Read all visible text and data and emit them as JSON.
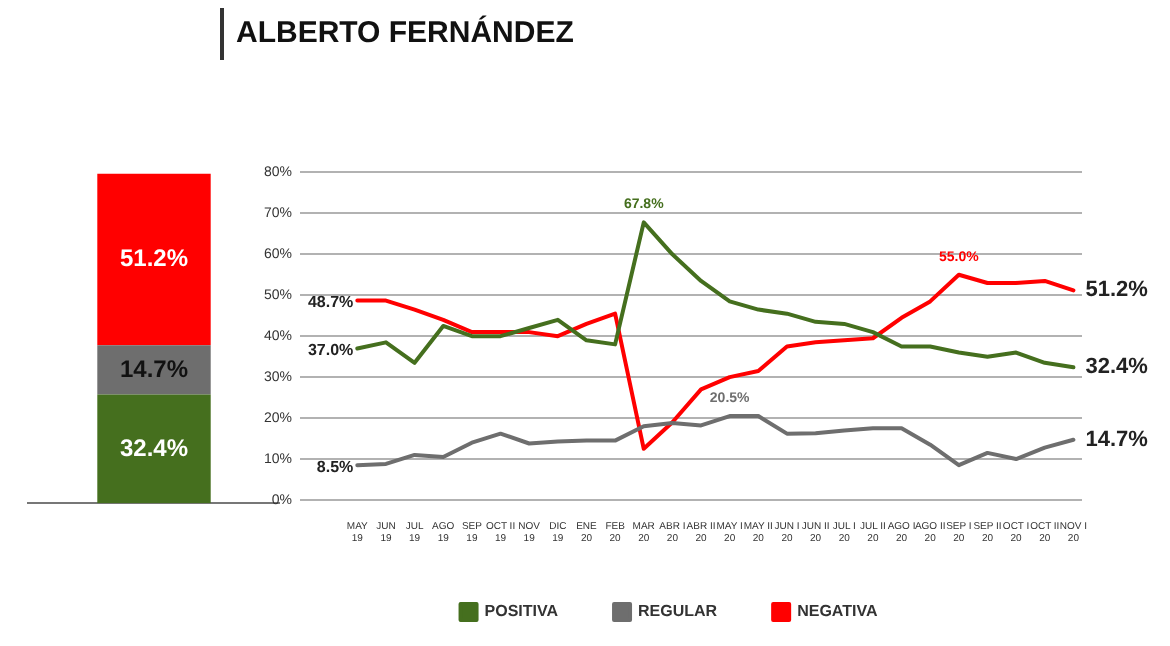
{
  "chart_data": [
    {
      "type": "bar",
      "categories": [
        null
      ],
      "stacked": true,
      "legend": false,
      "series": [
        {
          "color": "#456f1e",
          "values": [
            32.4
          ],
          "value_labels": [
            "32.4%"
          ]
        },
        {
          "color": "#6e6e6e",
          "values": [
            14.7
          ],
          "value_labels": [
            "14.7%"
          ]
        },
        {
          "color": "#ff0000",
          "values": [
            51.2
          ],
          "value_labels": [
            "51.2%"
          ]
        }
      ]
    },
    {
      "type": "line",
      "title": "ALBERTO FERNÁNDEZ",
      "categories": [
        "MAY 19",
        "JUN 19",
        "JUL 19",
        "AGO 19",
        "SEP 19",
        "OCT II 19",
        "NOV 19",
        "DIC 19",
        "ENE 20",
        "FEB 20",
        "MAR 20",
        "ABR I 20",
        "ABR II 20",
        "MAY I 20",
        "MAY II 20",
        "JUN I 20",
        "JUN II 20",
        "JUL I 20",
        "JUL II 20",
        "AGO I 20",
        "AGO II 20",
        "SEP I 20",
        "SEP II 20",
        "OCT I 20",
        "OCT II 20",
        "NOV I 20"
      ],
      "ylim": [
        0,
        80
      ],
      "yticks": [
        {
          "value": 0,
          "label": "0%"
        },
        {
          "value": 10,
          "label": "10%"
        },
        {
          "value": 20,
          "label": "20%"
        },
        {
          "value": 30,
          "label": "30%"
        },
        {
          "value": 40,
          "label": "40%"
        },
        {
          "value": 50,
          "label": "50%"
        },
        {
          "value": 60,
          "label": "60%"
        },
        {
          "value": 70,
          "label": "70%"
        },
        {
          "value": 80,
          "label": "80%"
        }
      ],
      "grid": "y",
      "legend": "bottom",
      "marker": "none",
      "line_style": "solid",
      "series": [
        {
          "name": "POSITIVA",
          "color": "#456f1e",
          "values": [
            37.0,
            38.5,
            33.5,
            42.5,
            40,
            40,
            42,
            44,
            39,
            38,
            67.8,
            60,
            53.5,
            48.5,
            46.5,
            45.5,
            43.5,
            43,
            41,
            37.5,
            37.5,
            36,
            35,
            36,
            33.5,
            32.4
          ],
          "value_labels": [
            "37.0%",
            null,
            null,
            null,
            null,
            null,
            null,
            null,
            null,
            null,
            "67.8%",
            null,
            null,
            null,
            null,
            null,
            null,
            null,
            null,
            null,
            null,
            null,
            null,
            null,
            null,
            "32.4%"
          ]
        },
        {
          "name": "REGULAR",
          "color": "#6e6e6e",
          "values": [
            8.5,
            8.8,
            11,
            10.5,
            14,
            16.2,
            13.8,
            14.3,
            14.5,
            14.5,
            18,
            18.8,
            18.2,
            20.5,
            20.5,
            16.2,
            16.3,
            17,
            17.5,
            17.5,
            13.5,
            8.5,
            11.5,
            10,
            12.8,
            14.7
          ],
          "value_labels": [
            "8.5%",
            null,
            null,
            null,
            null,
            null,
            null,
            null,
            null,
            null,
            null,
            null,
            null,
            "20.5%",
            null,
            null,
            null,
            null,
            null,
            null,
            null,
            null,
            null,
            null,
            null,
            "14.7%"
          ]
        },
        {
          "name": "NEGATIVA",
          "color": "#ff0000",
          "values": [
            48.7,
            48.7,
            46.5,
            44,
            41,
            41,
            41,
            40,
            43,
            45.5,
            12.5,
            19,
            27,
            30,
            31.5,
            37.5,
            38.5,
            39,
            39.5,
            44.5,
            48.5,
            55.0,
            53,
            53,
            53.5,
            51.2
          ],
          "value_labels": [
            "48.7%",
            null,
            null,
            null,
            null,
            null,
            null,
            null,
            null,
            null,
            null,
            null,
            null,
            null,
            null,
            null,
            null,
            null,
            null,
            null,
            null,
            "55.0%",
            null,
            null,
            null,
            "51.2%"
          ]
        }
      ]
    }
  ]
}
